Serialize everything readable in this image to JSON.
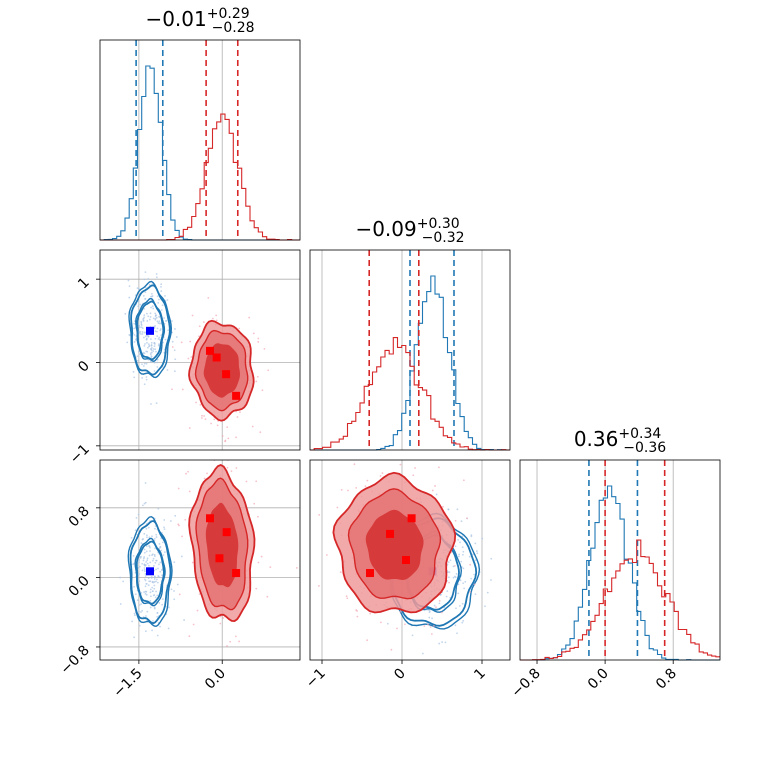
{
  "chart_data": [
    {
      "type": "histogram",
      "panel": "1D marginal, parameter 1",
      "title": {
        "main": "−0.01",
        "sup": "+0.29",
        "sub": "−0.28"
      },
      "xlim": [
        -2.2,
        1.4
      ],
      "grid": true,
      "series": [
        {
          "name": "",
          "color": "#1f77b4",
          "center": -1.3,
          "sigma": 0.2,
          "quantiles": [
            -1.55,
            -1.3,
            -1.07
          ],
          "quantile_lines": [
            -1.55,
            -1.07
          ]
        },
        {
          "name": "",
          "color": "#d62728",
          "center": 0.0,
          "sigma": 0.28,
          "quantiles": [
            -0.29,
            -0.01,
            0.28
          ],
          "quantile_lines": [
            -0.29,
            0.28
          ]
        }
      ]
    },
    {
      "type": "histogram",
      "panel": "1D marginal, parameter 2",
      "title": {
        "main": "−0.09",
        "sup": "+0.30",
        "sub": "−0.32"
      },
      "xlim": [
        -1.15,
        1.35
      ],
      "xticks": [
        "−1",
        "0",
        "1"
      ],
      "grid": true,
      "series": [
        {
          "name": "",
          "color": "#1f77b4",
          "center": 0.38,
          "sigma": 0.2,
          "quantiles": [
            0.1,
            0.38,
            0.65
          ],
          "quantile_lines": [
            0.1,
            0.65
          ]
        },
        {
          "name": "",
          "color": "#d62728",
          "center": -0.09,
          "sigma": 0.32,
          "quantiles": [
            -0.41,
            -0.09,
            0.21
          ],
          "quantile_lines": [
            -0.41,
            0.21
          ]
        }
      ]
    },
    {
      "type": "histogram",
      "panel": "1D marginal, parameter 3",
      "title": {
        "main": "0.36",
        "sup": "+0.34",
        "sub": "−0.36"
      },
      "xlim": [
        -1.0,
        1.35
      ],
      "xticks": [
        "−0.8",
        "0.0",
        "0.8"
      ],
      "grid": true,
      "series": [
        {
          "name": "",
          "color": "#1f77b4",
          "center": 0.05,
          "sigma": 0.22,
          "quantiles": [
            -0.19,
            0.05,
            0.38
          ],
          "quantile_lines": [
            -0.19,
            0.38
          ]
        },
        {
          "name": "",
          "color": "#d62728",
          "center": 0.36,
          "sigma": 0.35,
          "quantiles": [
            0.0,
            0.36,
            0.7
          ],
          "quantile_lines": [
            0.0,
            0.7
          ]
        }
      ]
    },
    {
      "type": "contour",
      "panel": "2D, parameter 1 vs parameter 2",
      "xlim": [
        -2.2,
        1.4
      ],
      "ylim": [
        -1.05,
        1.35
      ],
      "yticks": [
        "−1",
        "0",
        "1"
      ],
      "grid": true,
      "series": [
        {
          "name": "",
          "color": "#1f77b4",
          "filled": false,
          "center": [
            -1.3,
            0.38
          ],
          "rx": [
            0.23,
            0.34
          ],
          "ry": [
            0.34,
            0.52
          ],
          "rotation_deg": 0,
          "markers": [
            [
              -1.3,
              0.38
            ]
          ],
          "marker_color": "#0000ff"
        },
        {
          "name": "",
          "color": "#d62728",
          "filled": true,
          "center": 0.0,
          "center_y": -0.09,
          "rx": [
            0.32,
            0.45,
            0.55
          ],
          "ry": [
            0.32,
            0.47,
            0.58
          ],
          "rotation_deg": 32,
          "markers": [
            [
              -0.22,
              0.14
            ],
            [
              -0.1,
              0.06
            ],
            [
              0.07,
              -0.14
            ],
            [
              0.25,
              -0.4
            ]
          ],
          "marker_color": "#ff0000"
        }
      ]
    },
    {
      "type": "contour",
      "panel": "2D, parameter 1 vs parameter 3",
      "xlim": [
        -2.2,
        1.4
      ],
      "ylim": [
        -0.95,
        1.35
      ],
      "xticks": [
        "−1.5",
        "0.0"
      ],
      "yticks": [
        "−0.8",
        "0.0",
        "0.8"
      ],
      "grid": true,
      "series": [
        {
          "name": "",
          "color": "#1f77b4",
          "filled": false,
          "center": [
            -1.3,
            0.05
          ],
          "rx": [
            0.24,
            0.35
          ],
          "ry": [
            0.35,
            0.57
          ],
          "rotation_deg": 0,
          "markers": [
            [
              -1.3,
              0.07
            ]
          ],
          "marker_color": "#0000ff"
        },
        {
          "name": "",
          "color": "#d62728",
          "filled": true,
          "center": 0.0,
          "center_y": 0.36,
          "rx": [
            0.28,
            0.44,
            0.55
          ],
          "ry": [
            0.48,
            0.74,
            0.87
          ],
          "rotation_deg": 8,
          "markers": [
            [
              -0.22,
              0.68
            ],
            [
              0.08,
              0.52
            ],
            [
              -0.05,
              0.22
            ],
            [
              0.25,
              0.05
            ]
          ],
          "marker_color": "#ff0000"
        }
      ]
    },
    {
      "type": "contour",
      "panel": "2D, parameter 2 vs parameter 3",
      "xlim": [
        -1.15,
        1.35
      ],
      "ylim": [
        -0.95,
        1.35
      ],
      "xticks": [
        "−1",
        "0",
        "1"
      ],
      "grid": true,
      "series": [
        {
          "name": "",
          "color": "#1f77b4",
          "filled": false,
          "center": [
            0.38,
            0.05
          ],
          "rx": [
            0.32,
            0.52
          ],
          "ry": [
            0.42,
            0.6
          ],
          "rotation_deg": 0,
          "markers": [
            [
              0.38,
              0.07
            ]
          ],
          "marker_color": "#0000ff"
        },
        {
          "name": "",
          "color": "#d62728",
          "filled": true,
          "center": -0.09,
          "center_y": 0.36,
          "rx": [
            0.35,
            0.55,
            0.72
          ],
          "ry": [
            0.4,
            0.62,
            0.78
          ],
          "rotation_deg": 10,
          "markers": [
            [
              -0.4,
              0.05
            ],
            [
              -0.15,
              0.5
            ],
            [
              0.12,
              0.68
            ],
            [
              0.05,
              0.2
            ]
          ],
          "marker_color": "#ff0000"
        }
      ]
    }
  ],
  "colors": {
    "blue": "#1f77b4",
    "red": "#d62728",
    "marker_blue": "#0000ff",
    "marker_red": "#ff0000"
  }
}
